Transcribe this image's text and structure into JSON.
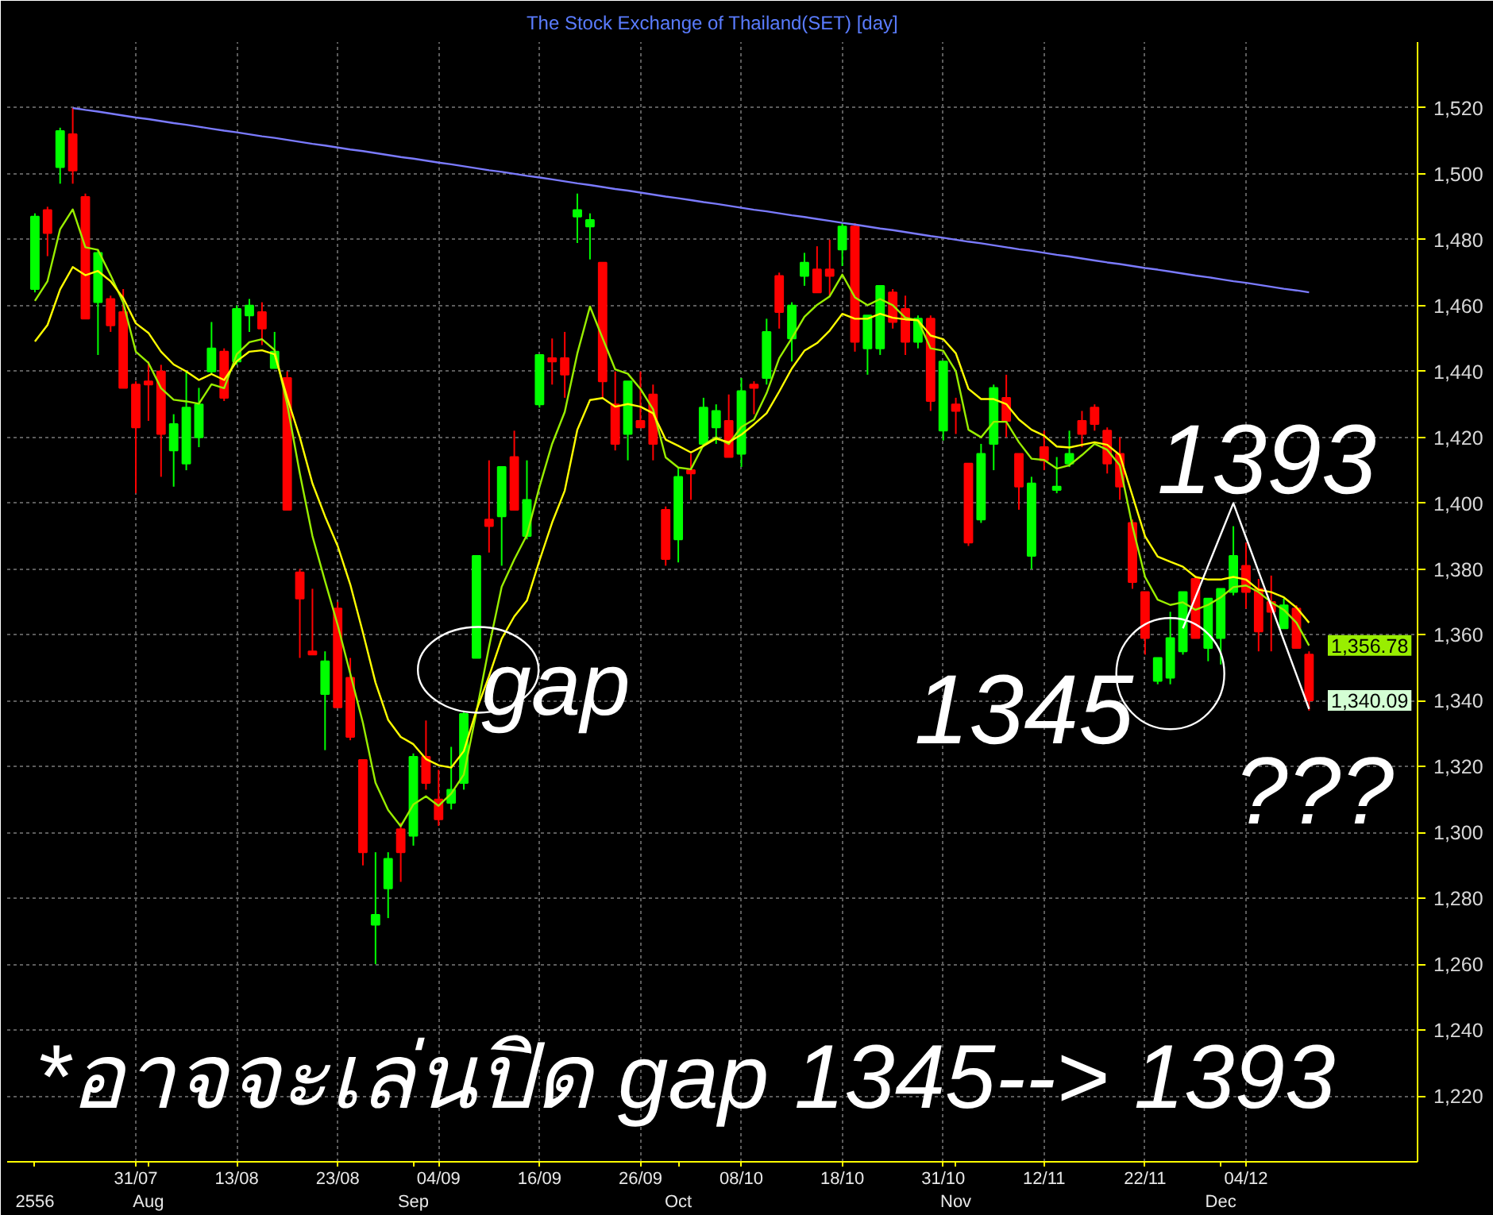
{
  "chart_data": {
    "type": "candlestick",
    "title": "The Stock Exchange of Thailand(SET) [day]",
    "categories": [
      "\n2556",
      null,
      null,
      null,
      null,
      null,
      null,
      null,
      "31/07",
      "\nAug",
      null,
      null,
      null,
      null,
      null,
      null,
      "13/08",
      null,
      null,
      null,
      null,
      null,
      null,
      null,
      "23/08",
      null,
      null,
      null,
      null,
      null,
      "\nSep",
      null,
      "04/09",
      null,
      null,
      null,
      null,
      null,
      null,
      null,
      "16/09",
      null,
      null,
      null,
      null,
      null,
      null,
      null,
      "26/09",
      null,
      null,
      "\nOct",
      null,
      null,
      null,
      null,
      "08/10",
      null,
      null,
      null,
      null,
      null,
      null,
      null,
      "18/10",
      null,
      null,
      null,
      null,
      null,
      null,
      null,
      "31/10",
      "\nNov",
      null,
      null,
      null,
      null,
      null,
      null,
      "12/11",
      null,
      null,
      null,
      null,
      null,
      null,
      null,
      "22/11",
      null,
      null,
      null,
      null,
      null,
      "\nDec",
      null,
      "04/12",
      null,
      null,
      null,
      null,
      null
    ],
    "ohlc": [
      [
        1465,
        1488,
        1464,
        1487
      ],
      [
        1489,
        1490,
        1475,
        1482
      ],
      [
        1502,
        1514,
        1497,
        1513
      ],
      [
        1512,
        1520,
        1497,
        1501
      ],
      [
        1493,
        1494,
        1456,
        1456
      ],
      [
        1461,
        1477,
        1445,
        1476
      ],
      [
        1462,
        1463,
        1452,
        1454
      ],
      [
        1458,
        1465,
        1435,
        1435
      ],
      [
        1436,
        1437,
        1403,
        1423
      ],
      [
        1437,
        1443,
        1425,
        1436
      ],
      [
        1440,
        1442,
        1408,
        1421
      ],
      [
        1416,
        1427,
        1405,
        1424
      ],
      [
        1412,
        1440,
        1410,
        1429
      ],
      [
        1420,
        1435,
        1417,
        1430
      ],
      [
        1440,
        1455,
        1439,
        1447
      ],
      [
        1446,
        1447,
        1431,
        1432
      ],
      [
        1443,
        1460,
        1442,
        1459
      ],
      [
        1457,
        1462,
        1452,
        1460
      ],
      [
        1458,
        1461,
        1448,
        1453
      ],
      [
        1441,
        1452,
        1441,
        1446
      ],
      [
        1438,
        1440,
        1398,
        1398
      ],
      [
        1379,
        1380,
        1353,
        1371
      ],
      [
        1355,
        1374,
        1354,
        1354
      ],
      [
        1342,
        1355,
        1325,
        1352
      ],
      [
        1368,
        1370,
        1338,
        1338
      ],
      [
        1347,
        1353,
        1328,
        1329
      ],
      [
        1322,
        1322,
        1290,
        1294
      ],
      [
        1272,
        1294,
        1260,
        1275
      ],
      [
        1283,
        1294,
        1274,
        1292
      ],
      [
        1301,
        1303,
        1285,
        1294
      ],
      [
        1299,
        1324,
        1296,
        1323
      ],
      [
        1323,
        1334,
        1313,
        1315
      ],
      [
        1310,
        1319,
        1302,
        1304
      ],
      [
        1309,
        1326,
        1307,
        1313
      ],
      [
        1315,
        1337,
        1313,
        1336
      ],
      [
        1353,
        1384,
        1353,
        1384
      ],
      [
        1395,
        1413,
        1385,
        1393
      ],
      [
        1396,
        1411,
        1381,
        1411
      ],
      [
        1414,
        1422,
        1398,
        1398
      ],
      [
        1390,
        1413,
        1389,
        1401
      ],
      [
        1430,
        1445,
        1429,
        1445
      ],
      [
        1444,
        1450,
        1436,
        1443
      ],
      [
        1444,
        1452,
        1432,
        1439
      ],
      [
        1487,
        1494,
        1479,
        1489
      ],
      [
        1484,
        1488,
        1474,
        1486
      ],
      [
        1473,
        1473,
        1432,
        1437
      ],
      [
        1430,
        1440,
        1416,
        1418
      ],
      [
        1421,
        1437,
        1413,
        1437
      ],
      [
        1425,
        1440,
        1423,
        1423
      ],
      [
        1433,
        1436,
        1413,
        1418
      ],
      [
        1398,
        1399,
        1381,
        1383
      ],
      [
        1389,
        1411,
        1382,
        1408
      ],
      [
        1410,
        1415,
        1401,
        1409
      ],
      [
        1418,
        1432,
        1417,
        1429
      ],
      [
        1423,
        1430,
        1418,
        1428
      ],
      [
        1425,
        1433,
        1414,
        1414
      ],
      [
        1415,
        1438,
        1411,
        1434
      ],
      [
        1436,
        1437,
        1427,
        1435
      ],
      [
        1438,
        1456,
        1436,
        1452
      ],
      [
        1469,
        1470,
        1453,
        1458
      ],
      [
        1450,
        1461,
        1443,
        1460
      ],
      [
        1469,
        1476,
        1466,
        1473
      ],
      [
        1471,
        1478,
        1464,
        1464
      ],
      [
        1471,
        1480,
        1463,
        1469
      ],
      [
        1477,
        1485,
        1472,
        1484
      ],
      [
        1484,
        1485,
        1446,
        1449
      ],
      [
        1447,
        1457,
        1439,
        1457
      ],
      [
        1447,
        1466,
        1445,
        1466
      ],
      [
        1464,
        1465,
        1453,
        1455
      ],
      [
        1459,
        1463,
        1445,
        1449
      ],
      [
        1449,
        1457,
        1447,
        1456
      ],
      [
        1456,
        1457,
        1428,
        1431
      ],
      [
        1422,
        1443,
        1419,
        1443
      ],
      [
        1430,
        1432,
        1421,
        1428
      ],
      [
        1412,
        1412,
        1387,
        1388
      ],
      [
        1395,
        1418,
        1394,
        1415
      ],
      [
        1418,
        1436,
        1410,
        1435
      ],
      [
        1432,
        1439,
        1420,
        1425
      ],
      [
        1415,
        1415,
        1398,
        1405
      ],
      [
        1384,
        1408,
        1380,
        1406
      ],
      [
        1417,
        1422,
        1410,
        1413
      ],
      [
        1404,
        1414,
        1403,
        1405
      ],
      [
        1412,
        1422,
        1411,
        1415
      ],
      [
        1425,
        1428,
        1417,
        1421
      ],
      [
        1429,
        1430,
        1422,
        1424
      ],
      [
        1422,
        1423,
        1409,
        1412
      ],
      [
        1415,
        1420,
        1401,
        1405
      ],
      [
        1394,
        1395,
        1374,
        1376
      ],
      [
        1373,
        1373,
        1354,
        1359
      ],
      [
        1346,
        1353,
        1345,
        1353
      ],
      [
        1347,
        1367,
        1345,
        1359
      ],
      [
        1355,
        1373,
        1354,
        1373
      ],
      [
        1377,
        1378,
        1359,
        1359
      ],
      [
        1356,
        1371,
        1352,
        1371
      ],
      [
        1359,
        1374,
        1351,
        1374
      ],
      [
        1373,
        1393,
        1372,
        1384
      ],
      [
        1381,
        1388,
        1368,
        1373
      ],
      [
        1374,
        1377,
        1355,
        1361
      ],
      [
        1370,
        1378,
        1355,
        1367
      ],
      [
        1362,
        1371,
        1362,
        1369
      ],
      [
        1368,
        1369,
        1356,
        1356
      ],
      [
        1354,
        1355,
        1337,
        1340.09
      ]
    ],
    "colors": [
      "#00ff00",
      "#ff0000",
      "#00ff00",
      "#ff0000",
      "#ff0000",
      "#00ff00",
      "#ff0000",
      "#ff0000",
      "#ff0000",
      "#ff0000",
      "#ff0000",
      "#00ff00",
      "#00ff00",
      "#00ff00",
      "#00ff00",
      "#ff0000",
      "#00ff00",
      "#00ff00",
      "#ff0000",
      "#00ff00",
      "#ff0000",
      "#ff0000",
      "#ff0000",
      "#00ff00",
      "#ff0000",
      "#ff0000",
      "#ff0000",
      "#00ff00",
      "#00ff00",
      "#ff0000",
      "#00ff00",
      "#ff0000",
      "#ff0000",
      "#00ff00",
      "#00ff00",
      "#00ff00",
      "#ff0000",
      "#00ff00",
      "#ff0000",
      "#00ff00",
      "#00ff00",
      "#ff0000",
      "#ff0000",
      "#00ff00",
      "#00ff00",
      "#ff0000",
      "#ff0000",
      "#00ff00",
      "#ff0000",
      "#ff0000",
      "#ff0000",
      "#00ff00",
      "#ff0000",
      "#00ff00",
      "#00ff00",
      "#ff0000",
      "#00ff00",
      "#ff0000",
      "#00ff00",
      "#ff0000",
      "#00ff00",
      "#00ff00",
      "#ff0000",
      "#ff0000",
      "#00ff00",
      "#ff0000",
      "#00ff00",
      "#00ff00",
      "#ff0000",
      "#ff0000",
      "#00ff00",
      "#ff0000",
      "#00ff00",
      "#ff0000",
      "#ff0000",
      "#00ff00",
      "#00ff00",
      "#ff0000",
      "#ff0000",
      "#00ff00",
      "#ff0000",
      "#00ff00",
      "#00ff00",
      "#ff0000",
      "#ff0000",
      "#ff0000",
      "#ff0000",
      "#ff0000",
      "#ff0000",
      "#00ff00",
      "#00ff00",
      "#00ff00",
      "#ff0000",
      "#00ff00",
      "#00ff00",
      "#00ff00",
      "#ff0000",
      "#ff0000",
      "#ff0000",
      "#00ff00",
      "#ff0000",
      "#ff0000"
    ],
    "value_labels": [
      null,
      null,
      null,
      null,
      null,
      null,
      null,
      null,
      null,
      null,
      null,
      null,
      null,
      null,
      null,
      null,
      null,
      null,
      null,
      null,
      null,
      null,
      null,
      null,
      null,
      null,
      null,
      null,
      null,
      null,
      null,
      null,
      null,
      null,
      null,
      null,
      null,
      null,
      null,
      null,
      null,
      null,
      null,
      null,
      null,
      null,
      null,
      null,
      null,
      null,
      null,
      null,
      null,
      null,
      null,
      null,
      null,
      null,
      null,
      null,
      null,
      null,
      null,
      null,
      null,
      null,
      null,
      null,
      null,
      null,
      null,
      null,
      null,
      null,
      null,
      null,
      null,
      null,
      null,
      null,
      null,
      null,
      null,
      null,
      null,
      null,
      null,
      null,
      null,
      null,
      null,
      null,
      null,
      null,
      null,
      null,
      null,
      null,
      null,
      null,
      null,
      "1,340.09"
    ],
    "series": [
      {
        "type": "line",
        "color": "#99ee00",
        "values": [
          1461.4,
          1467.4,
          1483.2,
          1489.2,
          1477.7,
          1476.9,
          1469.2,
          1460.9,
          1446,
          1442.6,
          1434.9,
          1431.4,
          1430.9,
          1430.2,
          1436.1,
          1434.9,
          1445.2,
          1448.9,
          1449.8,
          1446.5,
          1430,
          1409,
          1390,
          1376.3,
          1363,
          1348.2,
          1333.3,
          1315.1,
          1306.8,
          1301.9,
          1308.5,
          1311,
          1308.1,
          1311.8,
          1317.6,
          1336.6,
          1356.4,
          1374.6,
          1382.9,
          1390.3,
          1405,
          1418,
          1427.7,
          1445.5,
          1459.7,
          1450.1,
          1440.6,
          1439.3,
          1434.7,
          1428.5,
          1413.9,
          1410.8,
          1410.3,
          1417.7,
          1420,
          1418,
          1423.1,
          1425.4,
          1433.4,
          1444,
          1450.1,
          1456.6,
          1460.2,
          1462.8,
          1469.4,
          1462.5,
          1460.1,
          1462,
          1460.1,
          1456.3,
          1455.5,
          1447,
          1446.3,
          1440.1,
          1422.3,
          1420,
          1424.7,
          1424.7,
          1418.5,
          1413.5,
          1413.1,
          1410.5,
          1411.5,
          1414.6,
          1418,
          1416.2,
          1411.5,
          1393,
          1377.6,
          1370.7,
          1369.1,
          1369.9,
          1367.6,
          1369.1,
          1371.4,
          1374.5,
          1375,
          1373,
          1369.9,
          1367.6,
          1363.7,
          1356.78
        ],
        "value_labels": [
          null,
          null,
          null,
          null,
          null,
          null,
          null,
          null,
          null,
          null,
          null,
          null,
          null,
          null,
          null,
          null,
          null,
          null,
          null,
          null,
          null,
          null,
          null,
          null,
          null,
          null,
          null,
          null,
          null,
          null,
          null,
          null,
          null,
          null,
          null,
          null,
          null,
          null,
          null,
          null,
          null,
          null,
          null,
          null,
          null,
          null,
          null,
          null,
          null,
          null,
          null,
          null,
          null,
          null,
          null,
          null,
          null,
          null,
          null,
          null,
          null,
          null,
          null,
          null,
          null,
          null,
          null,
          null,
          null,
          null,
          null,
          null,
          null,
          null,
          null,
          null,
          null,
          null,
          null,
          null,
          null,
          null,
          null,
          null,
          null,
          null,
          null,
          null,
          null,
          null,
          null,
          null,
          null,
          null,
          null,
          null,
          null,
          null,
          null,
          null,
          null,
          "1,356.78"
        ]
      },
      {
        "type": "line",
        "color": "#ffff00",
        "values": [
          1449.1,
          1454.1,
          1464.9,
          1471.7,
          1469.2,
          1470.5,
          1467.4,
          1462.3,
          1454.6,
          1451.7,
          1446,
          1442.1,
          1440,
          1437.4,
          1439.2,
          1437.4,
          1443.1,
          1446,
          1446.4,
          1445.2,
          1432,
          1420,
          1406,
          1396,
          1387,
          1375.3,
          1360.7,
          1345.5,
          1334.2,
          1329,
          1326.8,
          1322.3,
          1320.4,
          1319.7,
          1324.7,
          1337.1,
          1347.5,
          1358.8,
          1365.6,
          1370.4,
          1382.6,
          1394.1,
          1403.8,
          1422.3,
          1431.3,
          1431.9,
          1429.3,
          1430.1,
          1429.3,
          1427.3,
          1419.3,
          1417.4,
          1415.4,
          1417.4,
          1419.6,
          1418.5,
          1420.8,
          1423.9,
          1427.3,
          1433.9,
          1440.9,
          1446.3,
          1448.6,
          1452.4,
          1457.5,
          1456,
          1456,
          1457.5,
          1456.3,
          1455.8,
          1455.5,
          1450.9,
          1449.8,
          1445.5,
          1434.7,
          1431.6,
          1431.6,
          1430.1,
          1425.4,
          1422.3,
          1420.5,
          1417.2,
          1416.9,
          1417.7,
          1418.5,
          1417.7,
          1414.6,
          1402.3,
          1389.9,
          1383.8,
          1382.2,
          1380.7,
          1377.6,
          1376.8,
          1376.8,
          1377.6,
          1376.8,
          1373.7,
          1373,
          1371.4,
          1368.3,
          1363.7
        ]
      },
      {
        "type": "line",
        "color": "#7b7bff",
        "values": [
          null,
          null,
          null,
          1520,
          1519.4,
          1518.9,
          1518.3,
          1517.7,
          1517.1,
          1516.6,
          1516,
          1515.4,
          1514.9,
          1514.3,
          1513.7,
          1513.1,
          1512.6,
          1512,
          1511.4,
          1510.9,
          1510.3,
          1509.7,
          1509.1,
          1508.6,
          1508,
          1507.4,
          1506.9,
          1506.3,
          1505.7,
          1505.1,
          1504.6,
          1504,
          1503.4,
          1502.9,
          1502.3,
          1501.7,
          1501.1,
          1500.6,
          1500,
          1499.4,
          1498.9,
          1498.3,
          1497.7,
          1497.1,
          1496.6,
          1496,
          1495.4,
          1494.9,
          1494.3,
          1493.7,
          1493.1,
          1492.6,
          1492,
          1491.4,
          1490.9,
          1490.3,
          1489.7,
          1489.1,
          1488.6,
          1488,
          1487.4,
          1486.9,
          1486.3,
          1485.7,
          1485.1,
          1484.6,
          1484,
          1483.4,
          1482.9,
          1482.3,
          1481.7,
          1481.1,
          1480.6,
          1480,
          1479.4,
          1478.9,
          1478.3,
          1477.7,
          1477.1,
          1476.6,
          1476,
          1475.4,
          1474.9,
          1474.3,
          1473.7,
          1473.1,
          1472.6,
          1472,
          1471.4,
          1470.9,
          1470.3,
          1469.7,
          1469.1,
          1468.6,
          1468,
          1467.4,
          1466.9,
          1466.3,
          1465.7,
          1465.1,
          1464.6,
          1464
        ]
      },
      {
        "type": "line",
        "color": "#ffffff",
        "values": [
          null,
          null,
          null,
          null,
          null,
          null,
          null,
          null,
          null,
          null,
          null,
          null,
          null,
          null,
          null,
          null,
          null,
          null,
          null,
          null,
          null,
          null,
          null,
          null,
          null,
          null,
          null,
          null,
          null,
          null,
          null,
          null,
          null,
          null,
          null,
          null,
          null,
          null,
          null,
          null,
          null,
          null,
          null,
          null,
          null,
          null,
          null,
          null,
          null,
          null,
          null,
          null,
          null,
          null,
          null,
          null,
          null,
          null,
          null,
          null,
          null,
          null,
          null,
          null,
          null,
          null,
          null,
          null,
          null,
          null,
          null,
          null,
          null,
          null,
          null,
          null,
          null,
          null,
          null,
          null,
          null,
          null,
          null,
          null,
          null,
          null,
          null,
          null,
          null,
          null,
          null,
          1362,
          1371.5,
          1381,
          1390.5,
          1400,
          1389.6,
          1379.2,
          1368.8,
          1358.3,
          1347.9,
          1337.5
        ]
      }
    ],
    "ylim": [
      1200,
      1540
    ],
    "yticks": [
      {
        "value": 1220,
        "label": "1,220"
      },
      {
        "value": 1240,
        "label": "1,240"
      },
      {
        "value": 1260,
        "label": "1,260"
      },
      {
        "value": 1280,
        "label": "1,280"
      },
      {
        "value": 1300,
        "label": "1,300"
      },
      {
        "value": 1320,
        "label": "1,320"
      },
      {
        "value": 1340,
        "label": "1,340"
      },
      {
        "value": 1360,
        "label": "1,360"
      },
      {
        "value": 1380,
        "label": "1,380"
      },
      {
        "value": 1400,
        "label": "1,400"
      },
      {
        "value": 1420,
        "label": "1,420"
      },
      {
        "value": 1440,
        "label": "1,440"
      },
      {
        "value": 1460,
        "label": "1,460"
      },
      {
        "value": 1480,
        "label": "1,480"
      },
      {
        "value": 1500,
        "label": "1,500"
      },
      {
        "value": 1520,
        "label": "1,520"
      }
    ],
    "grid": true,
    "annotations": [
      "gap",
      "1393",
      "1345",
      "???",
      "*อาจจะเล่นปิด gap 1345--> 1393"
    ]
  }
}
